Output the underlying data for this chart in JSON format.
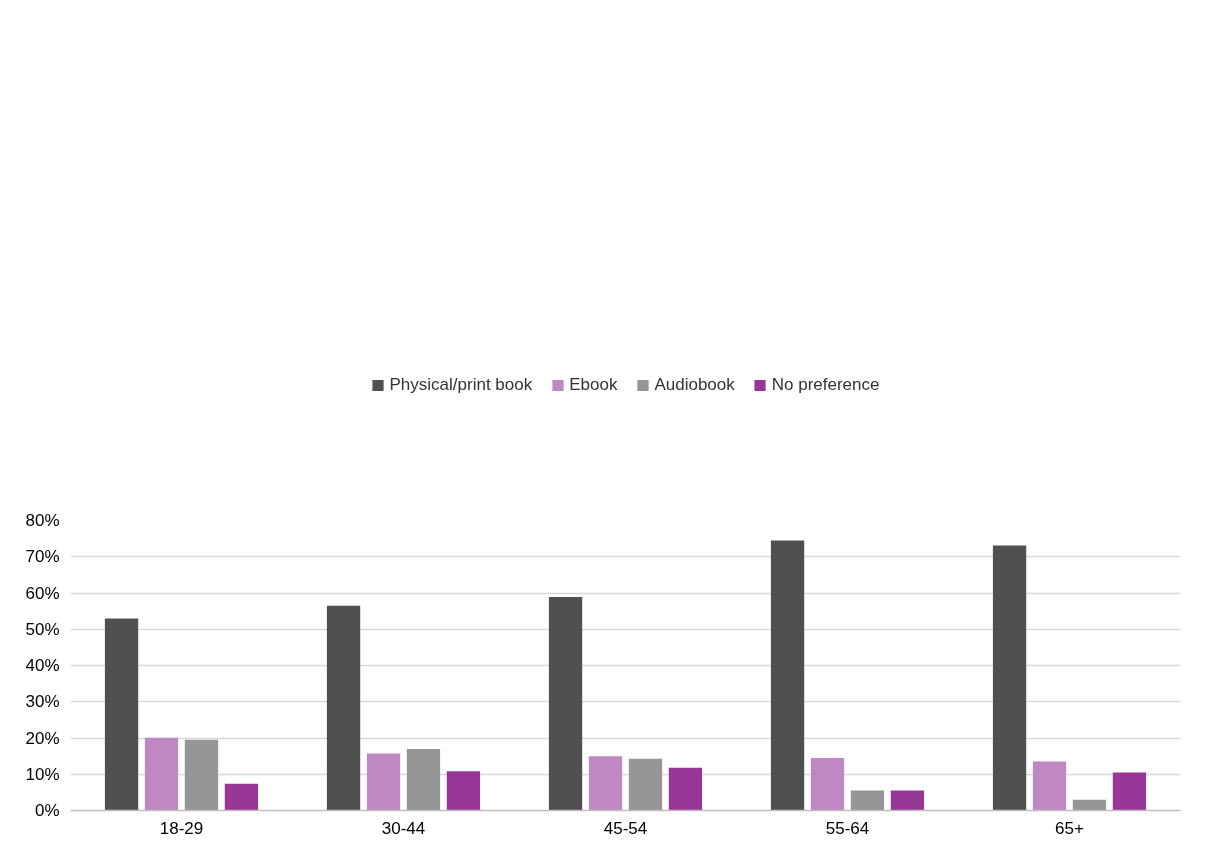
{
  "chart_data": {
    "type": "bar",
    "categories": [
      "18-29",
      "30-44",
      "45-54",
      "55-64",
      "65+"
    ],
    "series": [
      {
        "name": "Physical/print book",
        "color": "#505050",
        "values": [
          53,
          56.5,
          58.9,
          74.5,
          73.1
        ]
      },
      {
        "name": "Ebook",
        "color": "#bf88c2",
        "values": [
          20.1,
          15.7,
          15.0,
          14.5,
          13.5
        ]
      },
      {
        "name": "Audiobook",
        "color": "#969696",
        "values": [
          19.5,
          17.0,
          14.3,
          5.5,
          3.0
        ]
      },
      {
        "name": "No preference",
        "color": "#963696",
        "values": [
          7.4,
          10.8,
          11.8,
          5.5,
          10.5
        ]
      }
    ],
    "ylim": [
      0,
      80
    ],
    "yticks": [
      {
        "value": 0,
        "label": "0%"
      },
      {
        "value": 10,
        "label": "10%"
      },
      {
        "value": 20,
        "label": "20%"
      },
      {
        "value": 30,
        "label": "30%"
      },
      {
        "value": 40,
        "label": "40%"
      },
      {
        "value": 50,
        "label": "50%"
      },
      {
        "value": 60,
        "label": "60%"
      },
      {
        "value": 70,
        "label": "70%"
      },
      {
        "value": 80,
        "label": "80%"
      }
    ],
    "grid": "y",
    "legend": "top"
  }
}
